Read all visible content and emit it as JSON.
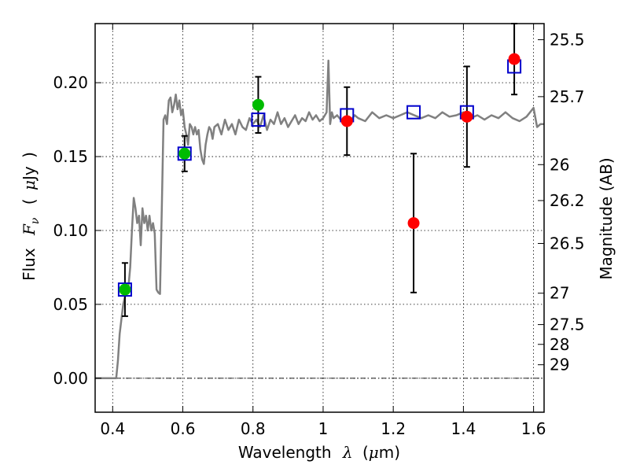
{
  "chart_data": {
    "type": "scatter",
    "xlabel_parts": [
      "Wavelength",
      "λ",
      "(",
      "μ",
      "m)"
    ],
    "ylabel_parts": [
      "Flux",
      "F",
      "ν",
      "(",
      "μ",
      "Jy",
      ")"
    ],
    "ylabel_right": "Magnitude (AB)",
    "xlim": [
      0.35,
      1.63
    ],
    "ylim": [
      -0.023,
      0.24
    ],
    "grid": true,
    "x_ticks": [
      {
        "value": 0.4,
        "label": "0.4"
      },
      {
        "value": 0.6,
        "label": "0.6"
      },
      {
        "value": 0.8,
        "label": "0.8"
      },
      {
        "value": 1.0,
        "label": "1"
      },
      {
        "value": 1.2,
        "label": "1.2"
      },
      {
        "value": 1.4,
        "label": "1.4"
      },
      {
        "value": 1.6,
        "label": "1.6"
      }
    ],
    "y_ticks": [
      {
        "value": 0.0,
        "label": "0.00"
      },
      {
        "value": 0.05,
        "label": "0.05"
      },
      {
        "value": 0.1,
        "label": "0.10"
      },
      {
        "value": 0.15,
        "label": "0.15"
      },
      {
        "value": 0.2,
        "label": "0.20"
      }
    ],
    "right_ticks": [
      {
        "value": 25.5,
        "label": "25.5"
      },
      {
        "value": 25.7,
        "label": "25.7"
      },
      {
        "value": 26.0,
        "label": "26"
      },
      {
        "value": 26.2,
        "label": "26.2"
      },
      {
        "value": 26.5,
        "label": "26.5"
      },
      {
        "value": 27.0,
        "label": "27"
      },
      {
        "value": 27.5,
        "label": "27.5"
      },
      {
        "value": 28.0,
        "label": "28"
      },
      {
        "value": 29.0,
        "label": "29"
      }
    ],
    "template_spectrum": {
      "color": "#808080",
      "x": [
        0.35,
        0.39,
        0.41,
        0.415,
        0.42,
        0.43,
        0.435,
        0.44,
        0.445,
        0.45,
        0.455,
        0.46,
        0.465,
        0.47,
        0.475,
        0.48,
        0.485,
        0.49,
        0.495,
        0.5,
        0.505,
        0.51,
        0.515,
        0.52,
        0.525,
        0.53,
        0.535,
        0.54,
        0.545,
        0.55,
        0.555,
        0.56,
        0.565,
        0.57,
        0.575,
        0.58,
        0.585,
        0.59,
        0.595,
        0.6,
        0.605,
        0.61,
        0.615,
        0.62,
        0.625,
        0.63,
        0.635,
        0.64,
        0.645,
        0.65,
        0.655,
        0.66,
        0.665,
        0.67,
        0.675,
        0.68,
        0.685,
        0.69,
        0.7,
        0.71,
        0.72,
        0.73,
        0.74,
        0.75,
        0.76,
        0.77,
        0.78,
        0.79,
        0.8,
        0.81,
        0.82,
        0.83,
        0.84,
        0.85,
        0.86,
        0.87,
        0.88,
        0.89,
        0.9,
        0.91,
        0.92,
        0.93,
        0.94,
        0.95,
        0.96,
        0.97,
        0.98,
        0.99,
        1.0,
        1.01,
        1.015,
        1.02,
        1.025,
        1.03,
        1.04,
        1.05,
        1.06,
        1.07,
        1.08,
        1.09,
        1.1,
        1.12,
        1.14,
        1.16,
        1.18,
        1.2,
        1.22,
        1.24,
        1.26,
        1.28,
        1.3,
        1.32,
        1.34,
        1.36,
        1.38,
        1.4,
        1.42,
        1.44,
        1.46,
        1.48,
        1.5,
        1.52,
        1.54,
        1.56,
        1.58,
        1.6,
        1.61,
        1.62,
        1.63
      ],
      "y": [
        0.0,
        0.0,
        0.0,
        0.012,
        0.03,
        0.05,
        0.055,
        0.058,
        0.062,
        0.075,
        0.1,
        0.122,
        0.115,
        0.105,
        0.11,
        0.09,
        0.115,
        0.105,
        0.11,
        0.1,
        0.11,
        0.1,
        0.105,
        0.098,
        0.06,
        0.058,
        0.057,
        0.115,
        0.175,
        0.178,
        0.172,
        0.188,
        0.19,
        0.18,
        0.185,
        0.192,
        0.182,
        0.188,
        0.178,
        0.182,
        0.17,
        0.165,
        0.158,
        0.172,
        0.17,
        0.165,
        0.17,
        0.165,
        0.168,
        0.155,
        0.148,
        0.145,
        0.158,
        0.165,
        0.17,
        0.168,
        0.162,
        0.17,
        0.172,
        0.165,
        0.175,
        0.168,
        0.172,
        0.165,
        0.175,
        0.17,
        0.168,
        0.176,
        0.172,
        0.175,
        0.17,
        0.178,
        0.168,
        0.175,
        0.172,
        0.18,
        0.172,
        0.176,
        0.17,
        0.174,
        0.178,
        0.172,
        0.176,
        0.174,
        0.18,
        0.175,
        0.178,
        0.174,
        0.176,
        0.18,
        0.215,
        0.172,
        0.18,
        0.176,
        0.178,
        0.175,
        0.174,
        0.177,
        0.175,
        0.178,
        0.176,
        0.174,
        0.18,
        0.176,
        0.178,
        0.176,
        0.178,
        0.18,
        0.178,
        0.176,
        0.178,
        0.176,
        0.18,
        0.177,
        0.178,
        0.18,
        0.176,
        0.178,
        0.175,
        0.178,
        0.176,
        0.18,
        0.176,
        0.174,
        0.177,
        0.183,
        0.17,
        0.172,
        0.172
      ]
    },
    "model_points": {
      "marker": "open-square",
      "color": "#0000cc",
      "x": [
        0.435,
        0.605,
        0.815,
        1.068,
        1.258,
        1.41,
        1.545
      ],
      "y": [
        0.06,
        0.152,
        0.175,
        0.178,
        0.18,
        0.18,
        0.211
      ]
    },
    "observed_optical": {
      "marker": "filled-circle",
      "color": "#00bb00",
      "x": [
        0.435,
        0.605,
        0.815
      ],
      "y": [
        0.06,
        0.152,
        0.185
      ],
      "err": [
        0.018,
        0.012,
        0.019
      ]
    },
    "observed_nir": {
      "marker": "filled-circle",
      "color": "#ff0000",
      "x": [
        1.068,
        1.258,
        1.41,
        1.545
      ],
      "y": [
        0.174,
        0.105,
        0.177,
        0.216
      ],
      "err": [
        0.023,
        0.047,
        0.034,
        0.024
      ]
    }
  }
}
